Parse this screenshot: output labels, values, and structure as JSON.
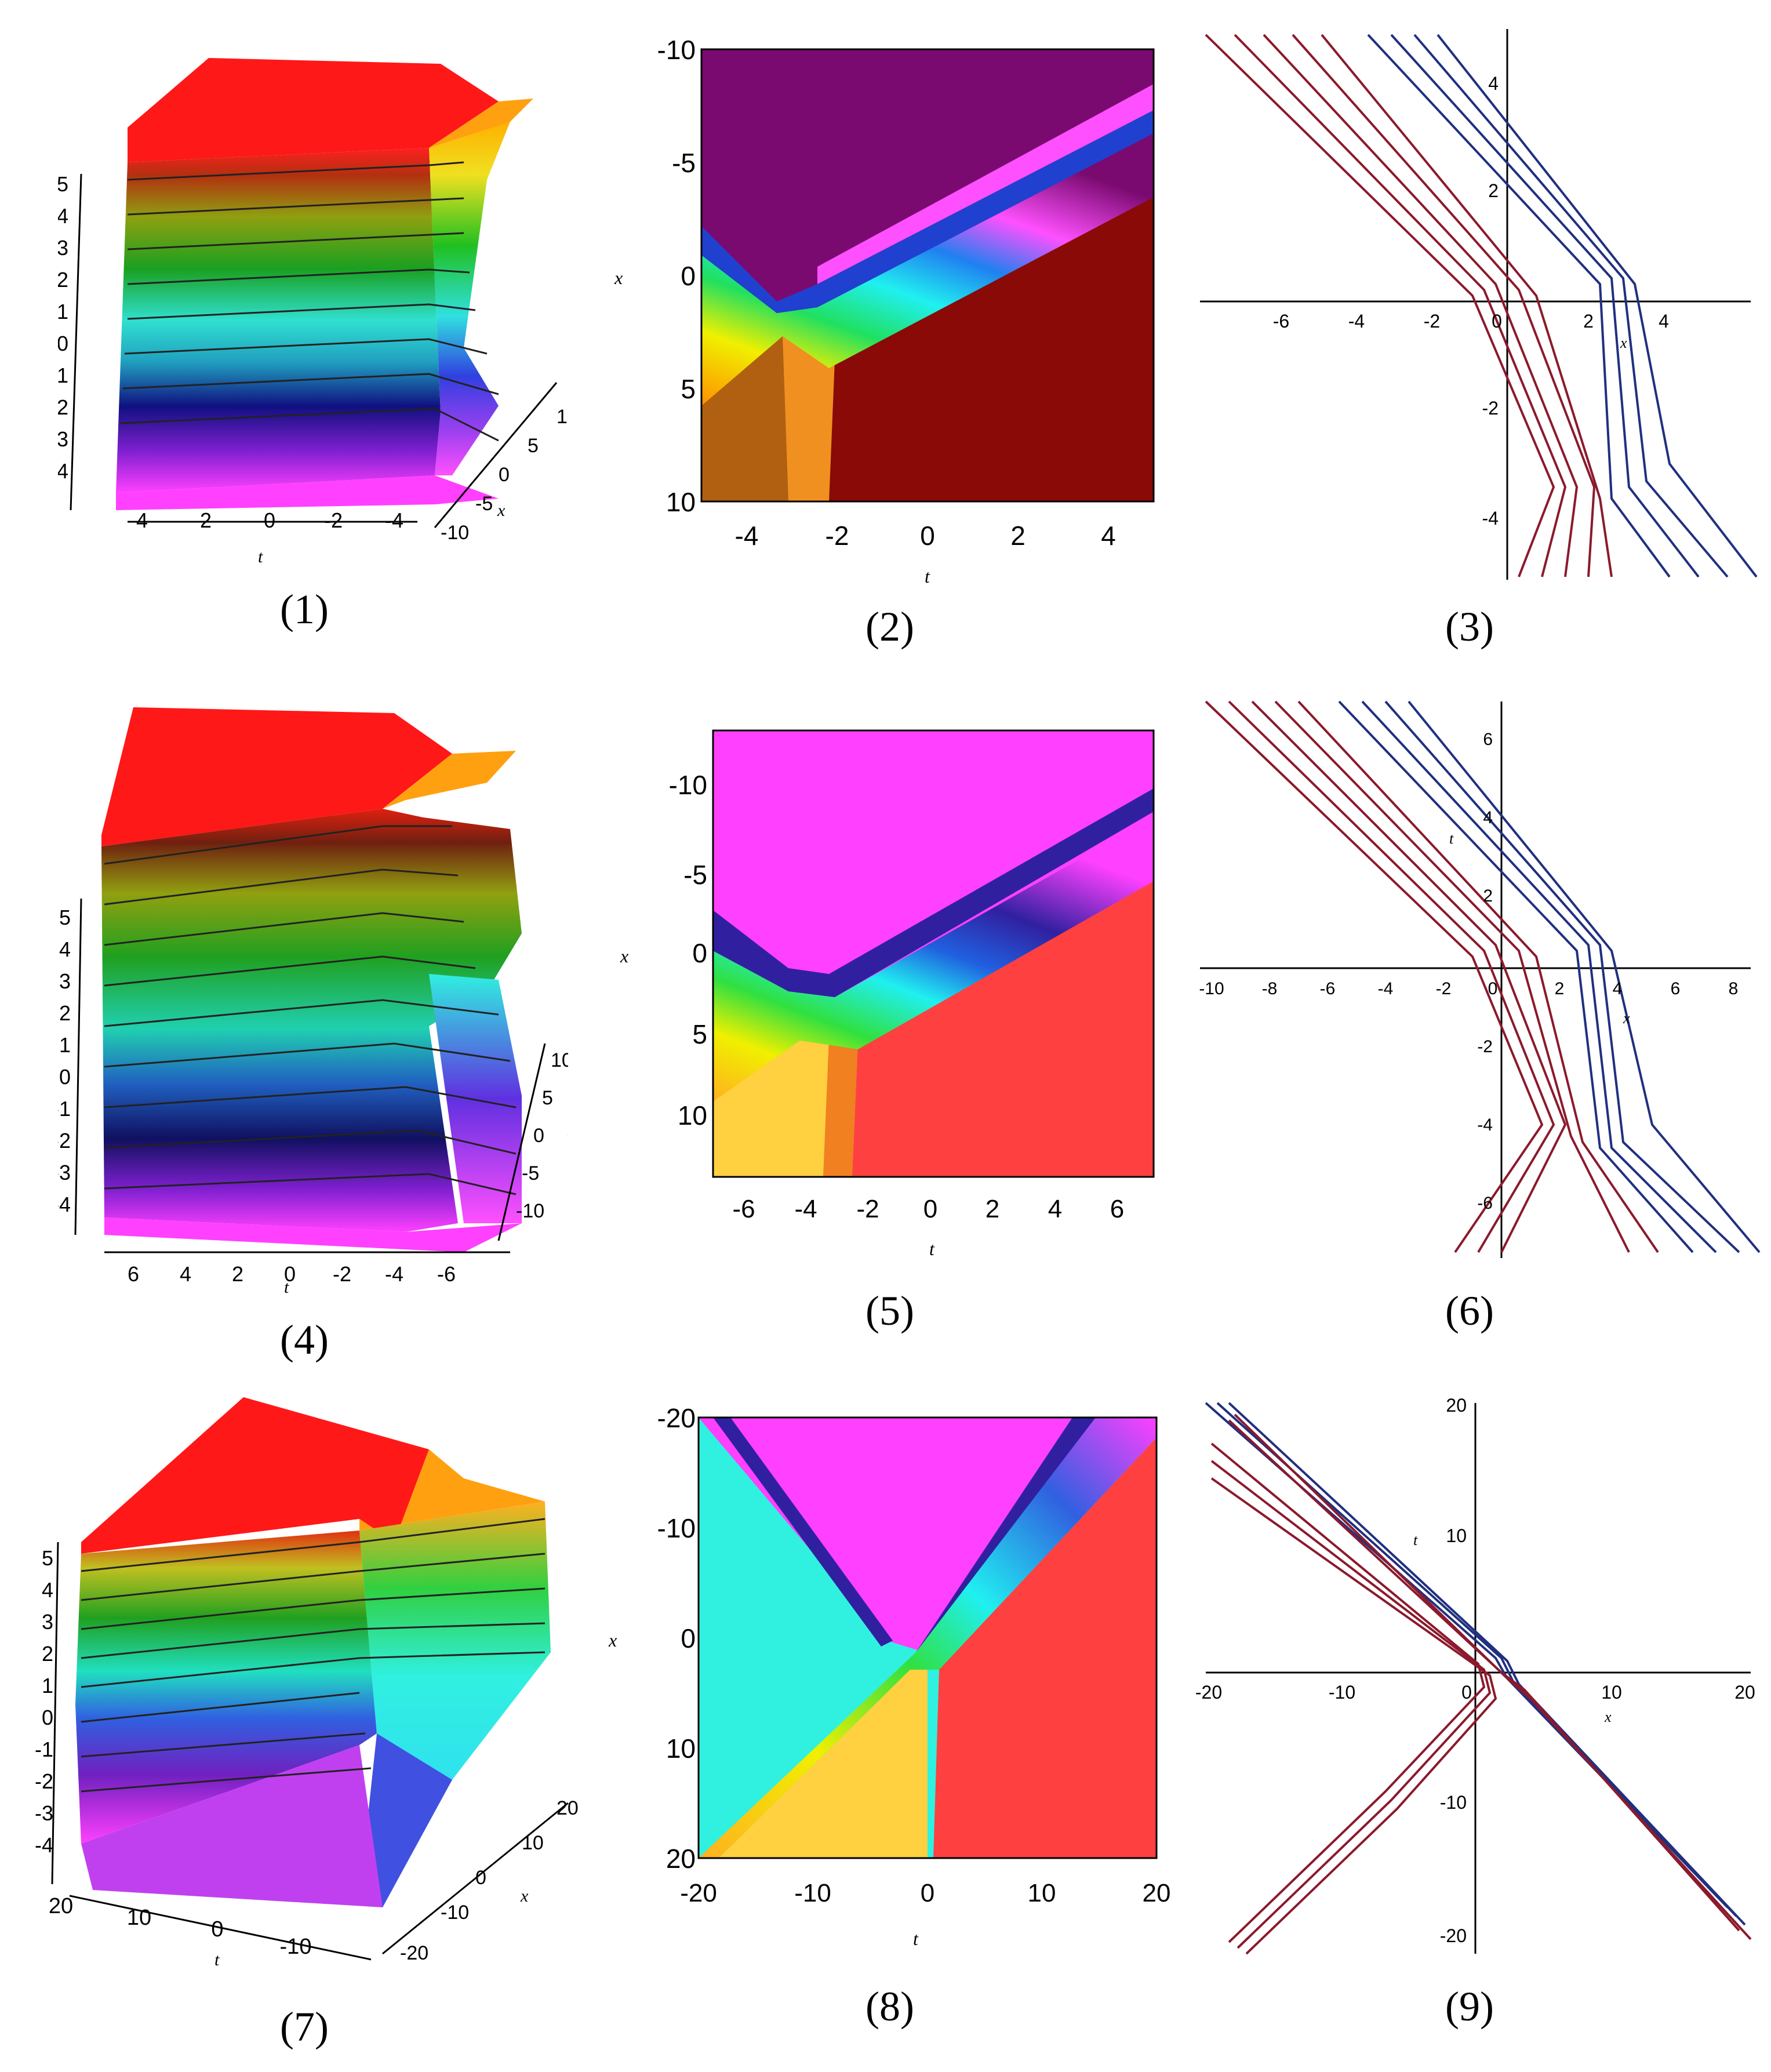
{
  "figure": {
    "captions": [
      "(1)",
      "(2)",
      "(3)",
      "(4)",
      "(5)",
      "(6)",
      "(7)",
      "(8)",
      "(9)"
    ]
  },
  "panel1": {
    "z_ticks": [
      "5",
      "4",
      "3",
      "2",
      "1",
      "0",
      "-1",
      "-2",
      "-3",
      "-4"
    ],
    "t_ticks": [
      "4",
      "2",
      "0",
      "-2",
      "-4"
    ],
    "x_ticks": [
      "10",
      "5",
      "0",
      "-5",
      "-10"
    ],
    "t_label": "t",
    "x_label": "x"
  },
  "panel2": {
    "x_ticks": [
      "-10",
      "-5",
      "0",
      "5",
      "10"
    ],
    "t_ticks": [
      "-4",
      "-2",
      "0",
      "2",
      "4"
    ],
    "t_label": "t",
    "x_label": "x"
  },
  "panel3": {
    "x_ticks": [
      "-6",
      "-4",
      "-2",
      "0",
      "2",
      "4"
    ],
    "y_ticks": [
      "4",
      "2",
      "-2",
      "-4"
    ],
    "x_label": "x"
  },
  "panel4": {
    "z_ticks": [
      "5",
      "4",
      "3",
      "2",
      "1",
      "0",
      "-1",
      "-2",
      "-3",
      "-4"
    ],
    "t_ticks": [
      "6",
      "4",
      "2",
      "0",
      "-2",
      "-4",
      "-6"
    ],
    "x_ticks": [
      "10",
      "5",
      "0",
      "-5",
      "-10"
    ],
    "t_label": "t",
    "x_label": "x"
  },
  "panel5": {
    "x_ticks": [
      "-10",
      "-5",
      "0",
      "5",
      "10"
    ],
    "t_ticks": [
      "-6",
      "-4",
      "-2",
      "0",
      "2",
      "4",
      "6"
    ],
    "t_label": "t",
    "x_label": "x"
  },
  "panel6": {
    "x_ticks": [
      "-10",
      "-8",
      "-6",
      "-4",
      "-2",
      "0",
      "2",
      "4",
      "6",
      "8"
    ],
    "y_ticks": [
      "6",
      "4",
      "2",
      "-2",
      "-4",
      "-6"
    ],
    "x_label": "x",
    "y_label": "t"
  },
  "panel7": {
    "z_ticks": [
      "5",
      "4",
      "3",
      "2",
      "1",
      "0",
      "-1",
      "-2",
      "-3",
      "-4"
    ],
    "t_ticks": [
      "20",
      "10",
      "0",
      "-10"
    ],
    "x_ticks": [
      "20",
      "10",
      "0",
      "-10",
      "-20"
    ],
    "t_label": "t",
    "x_label": "x"
  },
  "panel8": {
    "x_ticks": [
      "-20",
      "-10",
      "0",
      "10",
      "20"
    ],
    "t_ticks": [
      "-20",
      "-10",
      "0",
      "10",
      "20"
    ],
    "t_label": "t",
    "x_label": "x"
  },
  "panel9": {
    "x_ticks": [
      "-20",
      "-10",
      "0",
      "10",
      "20"
    ],
    "y_ticks": [
      "20",
      "10",
      "-10",
      "-20"
    ],
    "x_label": "x",
    "y_label": "t"
  }
}
